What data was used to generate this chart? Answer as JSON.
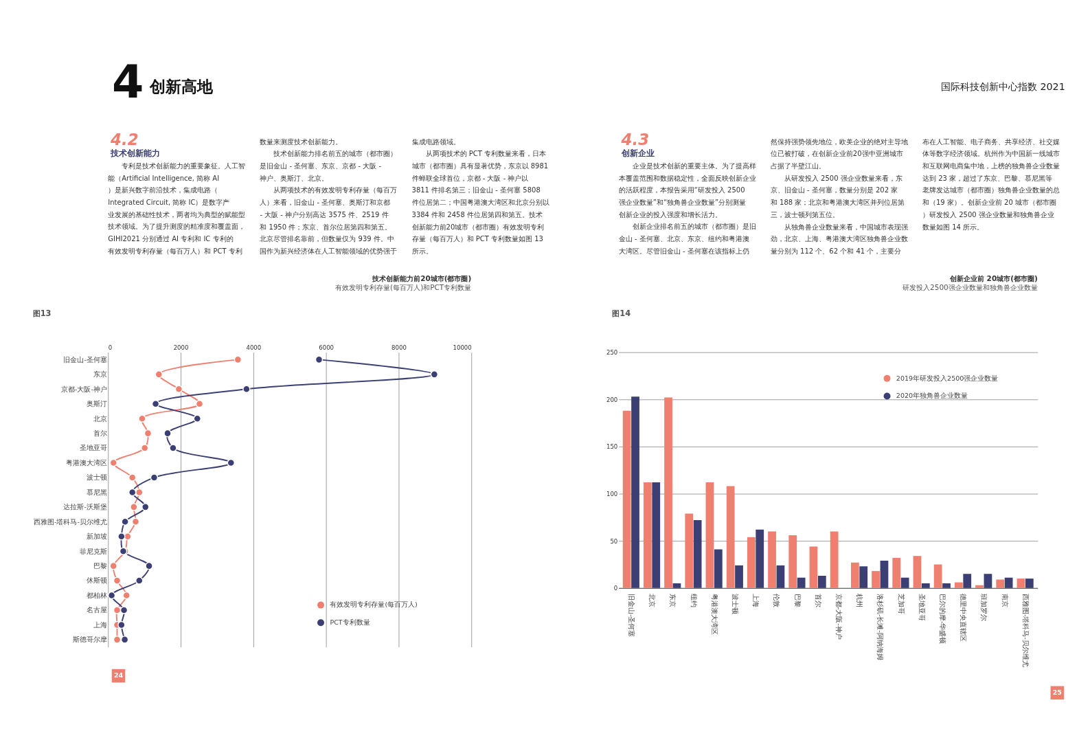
{
  "chart_data": [
    {
      "type": "line",
      "orientation": "horizontal",
      "title": "技术创新能力前20城市(都市圈)",
      "subtitle": "有效发明专利存量(每百万人)和PCT专利数量",
      "categories": [
        "旧金山-圣何塞",
        "东京",
        "京都-大阪-神户",
        "奥斯汀",
        "北京",
        "首尔",
        "圣地亚哥",
        "粤港澳大湾区",
        "波士顿",
        "慕尼黑",
        "达拉斯-沃斯堡",
        "西雅图-塔科马-贝尔维尤",
        "新加坡",
        "菲尼克斯",
        "巴黎",
        "休斯顿",
        "都柏林",
        "名古屋",
        "上海",
        "斯德哥尔摩"
      ],
      "series": [
        {
          "name": "有效发明专利存量(每百万人)",
          "color": "#ef7f6f",
          "values": [
            3575,
            1400,
            1950,
            2519,
            939,
            1100,
            1010,
            150,
            670,
            860,
            710,
            760,
            540,
            470,
            150,
            250,
            510,
            250,
            250,
            250
          ]
        },
        {
          "name": "PCT专利数量",
          "color": "#3b3f73",
          "values": [
            5808,
            8981,
            3811,
            1310,
            2458,
            1640,
            1790,
            3384,
            1270,
            670,
            1030,
            470,
            370,
            420,
            1130,
            860,
            100,
            440,
            370,
            460
          ]
        }
      ],
      "xlim": [
        0,
        10000
      ],
      "xticks": [
        0,
        2000,
        4000,
        6000,
        8000,
        10000
      ],
      "grid": "x",
      "legend": "bottom right",
      "marker": "circle",
      "annotations": [
        "4",
        "创新高地",
        "4.2",
        "技术创新能力",
        "图13",
        "24",
        "专利是技术创新能力的重要象征。人工智能（Artificial Intelligence, 简称 AI）是新兴数字前沿技术，集成电路（Integrated Circuit, 简称 IC）是数字产业发展的基础性技术，两者均为典型的赋能型技术领域。为了提升测度的精准度和覆盖面，GIHI2021 分别通过 AI 专利和 IC 专利的有效发明专利存量（每百万人）和 PCT 专利数量来测度技术创新能力。",
        "技术创新能力排名前五的城市（都市圈）是旧金山 - 圣何塞、东京、京都 - 大阪 - 神户、奥斯汀、北京。",
        "从两项技术的有效发明专利存量（每百万人）来看，旧金山 - 圣何塞、奥斯汀和京都 - 大阪 - 神户分别高达 3575 件、2519 件和 1950 件；东京、首尔位居第四和第五。北京尽管排名靠前，但数量仅为 939 件。中国作为新兴经济体在人工智能领域的优势强于集成电路领域。",
        "从两项技术的 PCT 专利数量来看，日本城市（都市圈）具有显著优势，东京以 8981 件蝉联全球首位，京都 - 大阪 - 神户以 3811 件排名第三；旧金山 - 圣何塞 5808 件位居第二；中国粤港澳大湾区和北京分别以 3384 件和 2458 件位居第四和第五。技术创新能力前20城市（都市圈）有效发明专利存量（每百万人）和 PCT 专利数量如图 13 所示。"
      ]
    },
    {
      "type": "bar",
      "title": "创新企业前 20城市(都市圈)",
      "subtitle": "研发投入2500强企业数量和独角兽企业数量",
      "categories": [
        "旧金山-圣何塞",
        "北京",
        "东京",
        "纽约",
        "粤港澳大湾区",
        "波士顿",
        "上海",
        "伦敦",
        "巴黎",
        "首尔",
        "京都-大阪-神户",
        "杭州",
        "洛杉矶-长滩-阿纳海姆",
        "芝加哥",
        "圣地亚哥",
        "巴尔的摩-华盛顿",
        "德里中央直辖区",
        "班加罗尔",
        "南京",
        "西雅图-塔科马-贝尔维尤"
      ],
      "series": [
        {
          "name": "2019年研发投入2500强企业数量",
          "color": "#ef7f6f",
          "values": [
            188,
            112,
            202,
            79,
            112,
            108,
            54,
            60,
            56,
            44,
            60,
            27,
            18,
            32,
            34,
            25,
            6,
            3,
            9,
            10
          ]
        },
        {
          "name": "2020年独角兽企业数量",
          "color": "#3b3f73",
          "values": [
            203,
            112,
            5,
            72,
            41,
            24,
            62,
            24,
            11,
            13,
            0,
            23,
            29,
            11,
            5,
            5,
            15,
            15,
            11,
            10
          ]
        }
      ],
      "ylim": [
        0,
        250
      ],
      "yticks": [
        0,
        50,
        100,
        150,
        200,
        250
      ],
      "grid": "y",
      "legend": "top right",
      "annotations": [
        "国际科技创新中心指数 2021",
        "4.3",
        "创新企业",
        "图14",
        "25",
        "企业是技术创新的重要主体。为了提高样本覆盖范围和数据稳定性，全面反映创新企业的活跃程度，本报告采用“研发投入 2500 强企业数量”和“独角兽企业数量”分别测量创新企业的投入强度和增长活力。",
        "创新企业排名前五的城市（都市圈）是旧金山 - 圣何塞、北京、东京、纽约和粤港澳大湾区。尽管旧金山 - 圣何塞在该指标上仍然保持强势领先地位，欧美企业的绝对主导地位已被打破，在创新企业前20强中亚洲城市占据了半壁江山。",
        "从研发投入 2500 强企业数量来看，东京、旧金山 - 圣何塞，数量分别是 202 家和 188 家；北京和粤港澳大湾区并列位居第三，波士顿列第五位。",
        "从独角兽企业数量来看，中国城市表现强劲，北京、上海、粤港澳大湾区独角兽企业数量分别为 112 个、62 个和 41 个，主要分布在人工智能、电子商务、共享经济、社交媒体等数字经济领域。杭州作为中国新一线城市和互联网电商集中地，上榜的独角兽企业数量达到 23 家，超过了东京、巴黎、慕尼黑等老牌发达城市（都市圈）独角兽企业数量的总和（19 家）。创新企业前 20 城市（都市圈）研发投入 2500 强企业数量和独角兽企业数量如图 14 所示。"
      ]
    }
  ]
}
